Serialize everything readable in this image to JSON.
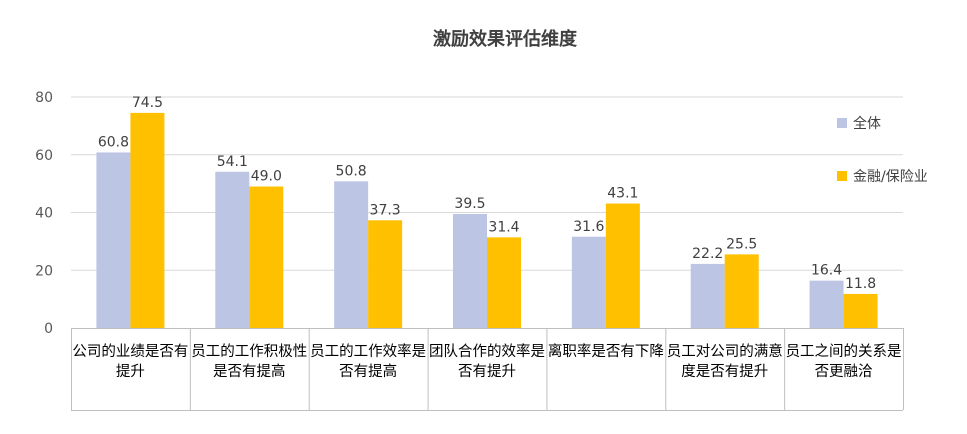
{
  "chart_data": {
    "type": "bar",
    "title": "激励效果评估维度",
    "categories": [
      "公司的业绩是否有提升",
      "员工的工作积极性是否有提高",
      "员工的工作效率是否有提高",
      "团队合作的效率是否有提升",
      "离职率是否有下降",
      "员工对公司的满意度是否有提升",
      "员工之间的关系是否更融洽"
    ],
    "series": [
      {
        "name": "全体",
        "color": "#BCC5E4",
        "values": [
          60.8,
          54.1,
          50.8,
          39.5,
          31.6,
          22.2,
          16.4
        ]
      },
      {
        "name": "金融/保险业",
        "color": "#FFC000",
        "values": [
          74.5,
          49.0,
          37.3,
          31.4,
          43.1,
          25.5,
          11.8
        ]
      }
    ],
    "ylim": [
      0,
      80
    ],
    "yticks": [
      0,
      20,
      40,
      60,
      80
    ],
    "grid": true,
    "legend": "right",
    "xlabel": "",
    "ylabel": ""
  }
}
